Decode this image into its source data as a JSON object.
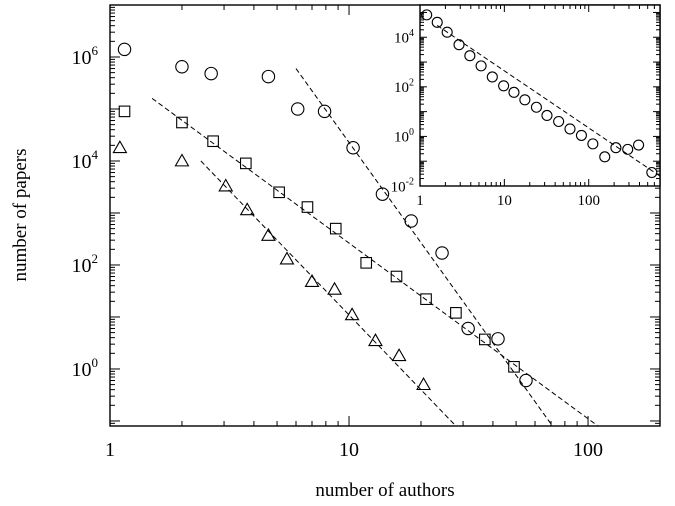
{
  "chart_data": [
    {
      "id": "main",
      "type": "scatter",
      "scale": {
        "x": "log",
        "y": "log"
      },
      "xlabel": "number of authors",
      "ylabel": "number of papers",
      "xlim": [
        1,
        200
      ],
      "ylim": [
        0.08,
        10000000
      ],
      "x_tick_labels": [
        {
          "value": 1,
          "text": "1"
        },
        {
          "value": 10,
          "text": "10"
        },
        {
          "value": 100,
          "text": "100"
        }
      ],
      "y_tick_labels": [
        {
          "value": 1,
          "base": "10",
          "exp": "0"
        },
        {
          "value": 100,
          "base": "10",
          "exp": "2"
        },
        {
          "value": 10000,
          "base": "10",
          "exp": "4"
        },
        {
          "value": 1000000,
          "base": "10",
          "exp": "6"
        }
      ],
      "series": [
        {
          "marker": "circle",
          "points": [
            [
              1.15,
              1400000
            ],
            [
              2,
              650000
            ],
            [
              2.65,
              480000
            ],
            [
              4.6,
              420000
            ],
            [
              6.1,
              100000
            ],
            [
              7.9,
              90000
            ],
            [
              10.4,
              18000
            ],
            [
              13.8,
              2300
            ],
            [
              18.2,
              700
            ],
            [
              24.5,
              170
            ],
            [
              31.5,
              6
            ],
            [
              42,
              3.8
            ],
            [
              55,
              0.6
            ]
          ]
        },
        {
          "marker": "square",
          "points": [
            [
              1.15,
              90000
            ],
            [
              2,
              55000
            ],
            [
              2.7,
              24000
            ],
            [
              3.7,
              9000
            ],
            [
              5.1,
              2500
            ],
            [
              6.7,
              1300
            ],
            [
              8.8,
              500
            ],
            [
              11.8,
              110
            ],
            [
              15.8,
              60
            ],
            [
              21,
              22
            ],
            [
              28,
              12
            ],
            [
              37,
              3.7
            ],
            [
              49,
              1.1
            ]
          ]
        },
        {
          "marker": "triangle",
          "points": [
            [
              1.1,
              18000
            ],
            [
              2,
              10000
            ],
            [
              3.05,
              3300
            ],
            [
              3.75,
              1150
            ],
            [
              4.6,
              370
            ],
            [
              5.5,
              130
            ],
            [
              7,
              48
            ],
            [
              8.7,
              34
            ],
            [
              10.3,
              11
            ],
            [
              12.9,
              3.5
            ],
            [
              16.2,
              1.8
            ],
            [
              20.5,
              0.5
            ]
          ]
        }
      ],
      "fits": [
        {
          "x": [
            6,
            71
          ],
          "y": [
            600000,
            0.08
          ]
        },
        {
          "x": [
            1.5,
            110
          ],
          "y": [
            160000,
            0.08
          ]
        },
        {
          "x": [
            2.4,
            28
          ],
          "y": [
            10000,
            0.08
          ]
        }
      ]
    },
    {
      "id": "inset",
      "type": "scatter",
      "scale": {
        "x": "log",
        "y": "log"
      },
      "xlim": [
        1,
        700
      ],
      "ylim": [
        0.01,
        200000
      ],
      "x_tick_labels": [
        {
          "value": 1,
          "text": "1"
        },
        {
          "value": 10,
          "text": "10"
        },
        {
          "value": 100,
          "text": "100"
        }
      ],
      "y_tick_labels": [
        {
          "value": 0.01,
          "base": "10",
          "exp": "-2"
        },
        {
          "value": 1,
          "base": "10",
          "exp": "0"
        },
        {
          "value": 100,
          "base": "10",
          "exp": "2"
        },
        {
          "value": 10000,
          "base": "10",
          "exp": "4"
        }
      ],
      "series": [
        {
          "marker": "circle",
          "points": [
            [
              1.2,
              80000
            ],
            [
              1.6,
              40000
            ],
            [
              2.1,
              16000
            ],
            [
              2.9,
              5000
            ],
            [
              3.9,
              1800
            ],
            [
              5.3,
              700
            ],
            [
              7.2,
              250
            ],
            [
              9.8,
              110
            ],
            [
              13,
              60
            ],
            [
              17.5,
              30
            ],
            [
              24,
              15
            ],
            [
              32,
              7
            ],
            [
              44,
              4
            ],
            [
              60,
              2
            ],
            [
              82,
              1.1
            ],
            [
              112,
              0.5
            ],
            [
              155,
              0.15
            ],
            [
              210,
              0.35
            ],
            [
              290,
              0.3
            ],
            [
              390,
              0.45
            ],
            [
              560,
              0.035
            ]
          ]
        }
      ],
      "fits": [
        {
          "x": [
            1.6,
            700
          ],
          "y": [
            30000,
            0.025
          ]
        }
      ]
    }
  ]
}
